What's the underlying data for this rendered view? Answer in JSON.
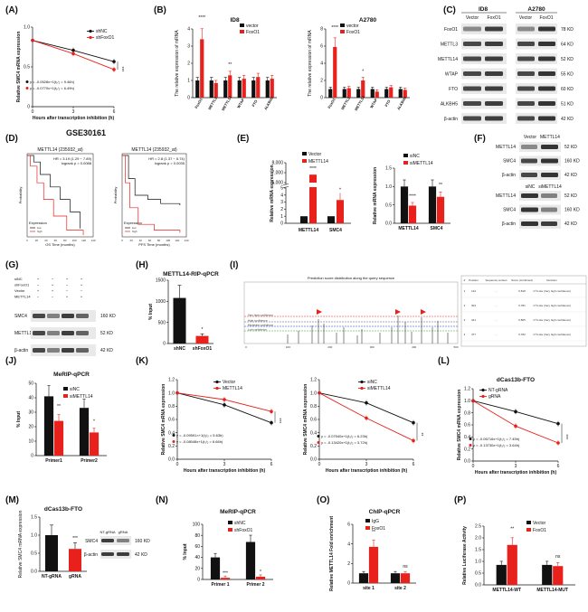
{
  "colors": {
    "red": "#e8211c",
    "black": "#111111",
    "gray": "#888888",
    "blotBg": "#e9e9e9",
    "band": "#2a2a2a"
  },
  "labels": {
    "A": "(A)",
    "B": "(B)",
    "C": "(C)",
    "D": "(D)",
    "E": "(E)",
    "F": "(F)",
    "G": "(G)",
    "H": "(H)",
    "I": "(I)",
    "J": "(J)",
    "K": "(K)",
    "L": "(L)",
    "M": "(M)",
    "N": "(N)",
    "O": "(O)",
    "P": "(P)"
  },
  "gse_title": "GSE30161",
  "chart_data": [
    {
      "panel": "A",
      "type": "line",
      "xlabel": "Hours after transcription inhibition (h)",
      "ylabel": "Relative SMC4 mRNA expression",
      "x": [
        0,
        3,
        6
      ],
      "xlim": [
        0,
        6
      ],
      "ylim": [
        0,
        1.2
      ],
      "yticks": [
        "0",
        "0.5",
        "1.0"
      ],
      "xticks": [
        "0",
        "3",
        "6"
      ],
      "series": [
        {
          "name": "shNC",
          "values": [
            1.0,
            0.85,
            0.68
          ],
          "color": "#111111"
        },
        {
          "name": "shFoxO1",
          "values": [
            1.0,
            0.8,
            0.56
          ],
          "color": "#e8211c"
        }
      ],
      "equations": [
        "y = -0.0528x+1(t₁/₂ = 9.46h)",
        "y = -0.0770x+1(t₁/₂ = 6.49h)"
      ],
      "annotations": [
        "*",
        "***"
      ]
    },
    {
      "panel": "B1",
      "type": "bar",
      "title": "ID8",
      "ylabel": "The relative expression of mRNA",
      "ylim": [
        0,
        4
      ],
      "yticks": [
        "0",
        "1",
        "2",
        "3",
        "4"
      ],
      "categories": [
        "FoxO1",
        "METTL3",
        "METTL14",
        "WTAP",
        "FTO",
        "ALKBH5"
      ],
      "series": [
        {
          "name": "vector",
          "values": [
            1,
            1,
            1,
            1,
            1,
            1
          ],
          "color": "#111111"
        },
        {
          "name": "FoxO1",
          "values": [
            3.4,
            0.85,
            1.3,
            1.1,
            1.2,
            1.1
          ],
          "color": "#e8211c"
        }
      ],
      "annotations": [
        "****",
        "",
        "**",
        "",
        "",
        ""
      ]
    },
    {
      "panel": "B2",
      "type": "bar",
      "title": "A2780",
      "ylabel": "The relative expression of mRNA",
      "ylim": [
        0,
        8
      ],
      "yticks": [
        "0",
        "2",
        "4",
        "6",
        "8"
      ],
      "categories": [
        "FoxO1",
        "METTL3",
        "METTL14",
        "WTAP",
        "FTO",
        "ALKBH5"
      ],
      "series": [
        {
          "name": "vector",
          "values": [
            1,
            1,
            1,
            1,
            1,
            1
          ],
          "color": "#111111"
        },
        {
          "name": "FoxO1",
          "values": [
            5.9,
            1.1,
            2.0,
            0.7,
            1.2,
            0.9
          ],
          "color": "#e8211c"
        }
      ],
      "annotations": [
        "****",
        "",
        "*",
        "",
        "",
        ""
      ]
    },
    {
      "panel": "D1",
      "type": "line",
      "title": "METTL14 (235932_at)",
      "xlabel": "OS  Time (months)",
      "ylabel": "Probability",
      "stats": "HR = 3.19 (1.29 − 7.89)",
      "logrank": "logrank p = 0.0088",
      "legend_title": "Expression",
      "series": [
        {
          "name": "low",
          "color": "#111111"
        },
        {
          "name": "high",
          "color": "#e8211c"
        }
      ],
      "xticks": [
        "0",
        "20",
        "40",
        "60",
        "80",
        "100",
        "120",
        "140"
      ]
    },
    {
      "panel": "D2",
      "type": "line",
      "title": "METTL14 (235932_at)",
      "xlabel": "PFS  Time (months)",
      "ylabel": "Probability",
      "stats": "HR = 2.8 (1.37 − 5.74)",
      "logrank": "logrank p = 0.0035",
      "legend_title": "Expression",
      "series": [
        {
          "name": "low",
          "color": "#111111"
        },
        {
          "name": "high",
          "color": "#e8211c"
        }
      ],
      "xticks": [
        "0",
        "20",
        "40",
        "60",
        "80",
        "100",
        "120",
        "140"
      ]
    },
    {
      "panel": "E1",
      "type": "bar",
      "ylabel": "Relative mRNA expression",
      "yticks": [
        "0",
        "1",
        "2",
        "3",
        "4",
        "5",
        "6,000",
        "7,000",
        "8,000"
      ],
      "categories": [
        "METTL14",
        "SMC4"
      ],
      "series": [
        {
          "name": "Vector",
          "values": [
            1,
            1
          ],
          "color": "#111111"
        },
        {
          "name": "METTL14",
          "values": [
            6800,
            3.3
          ],
          "color": "#e8211c"
        }
      ],
      "annotations": [
        "****",
        "*"
      ]
    },
    {
      "panel": "E2",
      "type": "bar",
      "ylabel": "Relative mRNA expression",
      "ylim": [
        0,
        1.5
      ],
      "yticks": [
        "0.0",
        "0.5",
        "1.0",
        "1.5"
      ],
      "categories": [
        "METTL14",
        "SMC4"
      ],
      "series": [
        {
          "name": "siNC",
          "values": [
            1,
            1
          ],
          "color": "#111111"
        },
        {
          "name": "siMETTL14",
          "values": [
            0.48,
            0.72
          ],
          "color": "#e8211c"
        }
      ],
      "annotations": [
        "****",
        "**"
      ]
    },
    {
      "panel": "H",
      "type": "bar",
      "title": "METTL14-RIP-qPCR",
      "ylabel": "% Input",
      "ylim": [
        0,
        1500
      ],
      "yticks": [
        "0",
        "500",
        "1000",
        "1500"
      ],
      "categories": [
        "shNC",
        "shFoxO1"
      ],
      "series": [
        {
          "name": "",
          "values": [
            1080,
            180
          ],
          "colors": [
            "#111111",
            "#e8211c"
          ]
        }
      ],
      "annotations": [
        "",
        "*"
      ]
    },
    {
      "panel": "I",
      "type": "line",
      "title": "Prediction score distribution along the query sequence",
      "legend": [
        "Very high confidence",
        "High confidence",
        "Moderate confidence",
        "Low confidence"
      ],
      "xticks": [
        "0",
        "100",
        "200",
        "300",
        "400",
        "500"
      ]
    },
    {
      "panel": "J",
      "type": "bar",
      "title": "MeRIP-qPCR",
      "ylabel": "% Input",
      "ylim": [
        0,
        50
      ],
      "yticks": [
        "0",
        "10",
        "20",
        "30",
        "40",
        "50"
      ],
      "categories": [
        "Primer1",
        "Primer2"
      ],
      "series": [
        {
          "name": "siNC",
          "values": [
            41,
            33
          ],
          "color": "#111111"
        },
        {
          "name": "siMETTL14",
          "values": [
            24,
            16
          ],
          "color": "#e8211c"
        }
      ],
      "annotations": [
        "**",
        "*"
      ]
    },
    {
      "panel": "K1",
      "type": "line",
      "xlabel": "Hours after transcription inhibition (h)",
      "ylabel": "Relative SMC4 mRNA expression",
      "x": [
        0,
        3,
        6
      ],
      "xlim": [
        0,
        6
      ],
      "ylim": [
        0,
        1.2
      ],
      "yticks": [
        "0.0",
        "0.2",
        "0.4",
        "0.6",
        "0.8",
        "1.0",
        "1.2"
      ],
      "xticks": [
        "0",
        "3",
        "6"
      ],
      "series": [
        {
          "name": "Vector",
          "values": [
            1.0,
            0.82,
            0.55
          ],
          "color": "#111111"
        },
        {
          "name": "METTL14",
          "values": [
            1.0,
            0.9,
            0.72
          ],
          "color": "#e8211c"
        }
      ],
      "equations": [
        "y = -0.09591×+1(t₁/₂ = 5.63h)",
        "y = -0.08048x+1(t₁/₂ = 6.66h)"
      ],
      "annotations": [
        "***"
      ]
    },
    {
      "panel": "K2",
      "type": "line",
      "xlabel": "Hours after transcription inhibition (h)",
      "ylabel": "Relative SMC4 mRNA expression",
      "x": [
        0,
        3,
        6
      ],
      "xlim": [
        0,
        6
      ],
      "ylim": [
        0,
        1.2
      ],
      "yticks": [
        "0.0",
        "0.2",
        "0.4",
        "0.6",
        "0.8",
        "1.0",
        "1.2"
      ],
      "xticks": [
        "0",
        "3",
        "6"
      ],
      "series": [
        {
          "name": "siNC",
          "values": [
            1.0,
            0.85,
            0.55
          ],
          "color": "#111111"
        },
        {
          "name": "siMETTL14",
          "values": [
            1.0,
            0.62,
            0.28
          ],
          "color": "#e8211c"
        }
      ],
      "equations": [
        "y = -0.07540x+1(t₁/₂ = 6.23h)",
        "y = -0.13420x+1(t₁/₂ = 3.72h)"
      ],
      "annotations": [
        "**"
      ]
    },
    {
      "panel": "L",
      "type": "line",
      "title": "dCas13b-FTO",
      "xlabel": "Hours after transcription inhibition (h)",
      "ylabel": "Relative SMC4 mRNA expression",
      "x": [
        0,
        3,
        6
      ],
      "xlim": [
        0,
        6
      ],
      "ylim": [
        0,
        1.2
      ],
      "yticks": [
        "0.0",
        "0.2",
        "0.4",
        "0.6",
        "0.8",
        "1.0",
        "1.2"
      ],
      "xticks": [
        "0",
        "3",
        "6"
      ],
      "series": [
        {
          "name": "NT-gRNA",
          "values": [
            1.0,
            0.82,
            0.62
          ],
          "color": "#111111"
        },
        {
          "name": "gRNA",
          "values": [
            1.0,
            0.58,
            0.3
          ],
          "color": "#e8211c"
        }
      ],
      "equations": [
        "y = -0.06716x+1(t₁/₂ = 7.45h)",
        "y = -0.13730x+1(t₁/₂ = 3.64h)"
      ],
      "annotations": [
        "***"
      ]
    },
    {
      "panel": "M",
      "type": "bar",
      "title": "dCas13b-FTO",
      "ylabel": "Relative SMC4 mRNA expression",
      "ylim": [
        0,
        1.5
      ],
      "yticks": [
        "0.0",
        "0.5",
        "1.0",
        "1.5"
      ],
      "categories": [
        "NT-gRNA",
        "gRNA"
      ],
      "series": [
        {
          "name": "",
          "values": [
            1.0,
            0.62
          ],
          "colors": [
            "#111111",
            "#e8211c"
          ]
        }
      ],
      "annotations": [
        "",
        "***"
      ]
    },
    {
      "panel": "N",
      "type": "bar",
      "title": "MeRIP-qPCR",
      "ylabel": "% Input",
      "ylim": [
        0,
        100
      ],
      "yticks": [
        "0",
        "20",
        "40",
        "60",
        "80",
        "100"
      ],
      "categories": [
        "Primer 1",
        "Primer 2"
      ],
      "series": [
        {
          "name": "shNC",
          "values": [
            40,
            68
          ],
          "color": "#111111"
        },
        {
          "name": "shFoxO1",
          "values": [
            3,
            5
          ],
          "color": "#e8211c"
        }
      ],
      "annotations": [
        "***",
        "*"
      ]
    },
    {
      "panel": "O",
      "type": "bar",
      "title": "ChIP-qPCR",
      "ylabel": "Relative METTL14 Fold enrichment",
      "ylim": [
        0,
        6
      ],
      "yticks": [
        "0",
        "2",
        "4",
        "6"
      ],
      "categories": [
        "site 1",
        "site 2"
      ],
      "series": [
        {
          "name": "IgG",
          "values": [
            1,
            1
          ],
          "color": "#111111"
        },
        {
          "name": "FoxO1",
          "values": [
            3.7,
            1.0
          ],
          "color": "#e8211c"
        }
      ],
      "annotations": [
        "**",
        "ns"
      ]
    },
    {
      "panel": "P",
      "type": "bar",
      "ylabel": "Relative Luciferase Activity",
      "ylim": [
        0,
        2.5
      ],
      "yticks": [
        "0.0",
        "0.5",
        "1.0",
        "1.5",
        "2.0",
        "2.5"
      ],
      "categories": [
        "METTL14-WT",
        "METTL14-MUT"
      ],
      "series": [
        {
          "name": "Vector",
          "values": [
            0.85,
            0.85
          ],
          "color": "#111111"
        },
        {
          "name": "FoxO1",
          "values": [
            1.7,
            0.8
          ],
          "color": "#e8211c"
        }
      ],
      "annotations": [
        "**",
        "ns"
      ]
    }
  ],
  "blots": {
    "C": {
      "headers": [
        "ID8",
        "A2780"
      ],
      "lanes": [
        "Vector",
        "FoxO1",
        "Vector",
        "FoxO1"
      ],
      "rows": [
        {
          "name": "FoxO1",
          "kd": "78 KD"
        },
        {
          "name": "METTL3",
          "kd": "64 KD"
        },
        {
          "name": "METTL14",
          "kd": "52 KD"
        },
        {
          "name": "WTAP",
          "kd": "55 KD"
        },
        {
          "name": "FTO",
          "kd": "60 KD"
        },
        {
          "name": "ALKBH5",
          "kd": "51 KD"
        },
        {
          "name": "β-actin",
          "kd": "42 KD"
        }
      ]
    },
    "F": {
      "top_lanes": [
        "Vector",
        "METTL14"
      ],
      "bottom_lanes": [
        "siNC",
        "siMETTL14"
      ],
      "rows": [
        {
          "name": "METTL14",
          "kd": "52 KD"
        },
        {
          "name": "SMC4",
          "kd": "160 KD"
        },
        {
          "name": "β-actin",
          "kd": "42 KD"
        }
      ]
    },
    "G": {
      "conditions": [
        "siNC",
        "shFoxO1",
        "Vector",
        "METTL14"
      ],
      "rows": [
        {
          "name": "SMC4",
          "kd": "160 KD"
        },
        {
          "name": "METTL14",
          "kd": "52 KD"
        },
        {
          "name": "β-actin",
          "kd": "42 KD"
        }
      ]
    },
    "M": {
      "lanes": [
        "NT-gRNA",
        "gRNA"
      ],
      "rows": [
        {
          "name": "SMC4",
          "kd": "160 KD"
        },
        {
          "name": "β-actin",
          "kd": "42 KD"
        }
      ]
    }
  },
  "table_I": {
    "headers": [
      "#",
      "Position",
      "Sequence context",
      "Score (combined)",
      "Decision"
    ],
    "rows": [
      [
        "1",
        "122",
        "...",
        "0.818",
        "m⁶A site (Very high confidence)"
      ],
      [
        "2",
        "304",
        "...",
        "0.781",
        "m⁶A site (Very high confidence)"
      ],
      [
        "3",
        "441",
        "...",
        "0.805",
        "m⁶A site (Very high confidence)"
      ],
      [
        "4",
        "477",
        "...",
        "0.782",
        "m⁶A site (Very high confidence)"
      ]
    ]
  }
}
